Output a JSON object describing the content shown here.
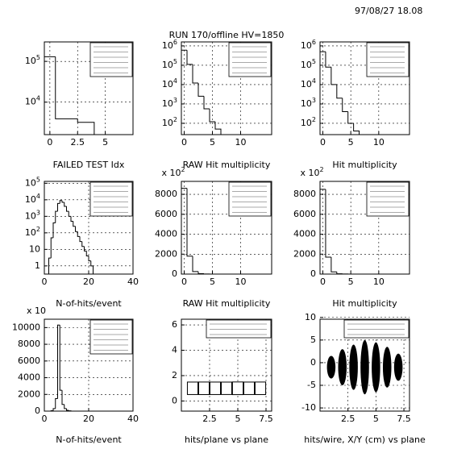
{
  "header": {
    "timestamp": "97/08/27  18.08",
    "title": "RUN 170/offline HV=1850"
  },
  "chart_data": [
    {
      "type": "histogram",
      "caption": "FAILED TEST Idx",
      "bins": [
        -0.5,
        0.5,
        2.5,
        4
      ],
      "counts": [
        130000,
        3900,
        3200
      ],
      "xlim": [
        -0.5,
        7.5
      ],
      "xticks": [
        0,
        2.5,
        5
      ],
      "ylim": [
        1600,
        300000
      ],
      "log_y": true,
      "yticks": [
        {
          "value": 10000,
          "label": "10^4"
        },
        {
          "value": 100000,
          "label": "10^5"
        }
      ],
      "grid": true,
      "color": "#000000"
    },
    {
      "type": "histogram",
      "caption": "RAW Hit multiplicity",
      "bins": [
        -0.5,
        0.5,
        1.5,
        2.5,
        3.5,
        4.5,
        5.5,
        6.5
      ],
      "counts": [
        600000,
        110000,
        12000,
        2500,
        560,
        120,
        50
      ],
      "xlim": [
        -0.5,
        15.5
      ],
      "xticks": [
        0,
        5,
        10
      ],
      "ylim": [
        26,
        1600000
      ],
      "log_y": true,
      "yticks": [
        {
          "value": 100,
          "label": "10^2"
        },
        {
          "value": 1000,
          "label": "10^3"
        },
        {
          "value": 10000,
          "label": "10^4"
        },
        {
          "value": 100000,
          "label": "10^5"
        },
        {
          "value": 1000000,
          "label": "10^6"
        }
      ],
      "grid": true,
      "color": "#000000"
    },
    {
      "type": "histogram",
      "caption": "Hit multiplicity",
      "bins": [
        -0.5,
        0.5,
        1.5,
        2.5,
        3.5,
        4.5,
        5.5,
        6.5
      ],
      "counts": [
        500000,
        80000,
        10000,
        2000,
        400,
        100,
        40
      ],
      "xlim": [
        -0.5,
        15.5
      ],
      "xticks": [
        0,
        5,
        10
      ],
      "ylim": [
        26,
        1600000
      ],
      "log_y": true,
      "yticks": [
        {
          "value": 100,
          "label": "10^2"
        },
        {
          "value": 1000,
          "label": "10^3"
        },
        {
          "value": 10000,
          "label": "10^4"
        },
        {
          "value": 100000,
          "label": "10^5"
        },
        {
          "value": 1000000,
          "label": "10^6"
        }
      ],
      "grid": true,
      "color": "#000000"
    },
    {
      "type": "histogram",
      "caption": "N-of-hits/event",
      "bins": [
        2,
        3,
        4,
        5,
        6,
        7,
        8,
        9,
        10,
        11,
        12,
        13,
        14,
        15,
        16,
        17,
        18,
        19,
        20,
        21,
        22
      ],
      "counts": [
        3,
        50,
        400,
        2000,
        6000,
        9000,
        7000,
        4000,
        2000,
        1000,
        500,
        250,
        120,
        60,
        30,
        15,
        8,
        4,
        2,
        1
      ],
      "xlim": [
        0,
        40
      ],
      "xticks": [
        0,
        20,
        40
      ],
      "ylim": [
        0.32,
        130000
      ],
      "log_y": true,
      "yticks": [
        1,
        10,
        {
          "value": 100,
          "label": "10^2"
        },
        {
          "value": 1000,
          "label": "10^3"
        },
        {
          "value": 10000,
          "label": "10^4"
        },
        {
          "value": 100000,
          "label": "10^5"
        }
      ],
      "grid": true,
      "color": "#000000"
    },
    {
      "type": "histogram",
      "caption": "RAW Hit multiplicity",
      "axis_note": "x 10^2",
      "bins": [
        -0.5,
        0.5,
        1.5,
        2.5,
        3.5,
        4.5
      ],
      "counts": [
        8600,
        1800,
        250,
        40,
        8
      ],
      "xlim": [
        -0.5,
        15.5
      ],
      "xticks": [
        0,
        5,
        10
      ],
      "ylim": [
        0,
        9300
      ],
      "log_y": false,
      "yticks": [
        0,
        2000,
        4000,
        6000,
        8000
      ],
      "grid": true,
      "color": "#000000"
    },
    {
      "type": "histogram",
      "caption": "Hit multiplicity",
      "axis_note": "x 10^2",
      "bins": [
        -0.5,
        0.5,
        1.5,
        2.5,
        3.5,
        4.5
      ],
      "counts": [
        8500,
        1700,
        220,
        35,
        6
      ],
      "xlim": [
        -0.5,
        15.5
      ],
      "xticks": [
        0,
        5,
        10
      ],
      "ylim": [
        0,
        9300
      ],
      "log_y": false,
      "yticks": [
        0,
        2000,
        4000,
        6000,
        8000
      ],
      "grid": true,
      "color": "#000000"
    },
    {
      "type": "histogram",
      "caption": "N-of-hits/event",
      "axis_note": "x 10",
      "bins": [
        3,
        4,
        5,
        6,
        7,
        8,
        9,
        10,
        11,
        12
      ],
      "counts": [
        50,
        300,
        1500,
        10300,
        2500,
        800,
        300,
        100,
        40
      ],
      "xlim": [
        0,
        40
      ],
      "xticks": [
        0,
        20,
        40
      ],
      "ylim": [
        0,
        11000
      ],
      "log_y": false,
      "yticks": [
        0,
        2000,
        4000,
        6000,
        8000,
        10000
      ],
      "grid": true,
      "color": "#000000"
    },
    {
      "type": "box2d",
      "caption": "hits/plane vs plane",
      "x": [
        1,
        2,
        3,
        4,
        5,
        6,
        7
      ],
      "y": [
        1,
        1,
        1,
        1,
        1,
        1,
        1
      ],
      "values": [
        9500,
        9600,
        9500,
        9400,
        9800,
        9500,
        9600
      ],
      "xlim": [
        0,
        8
      ],
      "xticks": [
        2.5,
        5,
        7.5
      ],
      "ylim": [
        -0.8,
        6.45
      ],
      "log_y": false,
      "yticks": [
        0,
        2,
        4,
        6
      ],
      "grid": true,
      "color": "#000000"
    },
    {
      "type": "violin",
      "caption": "hits/wire, X/Y (cm) vs plane",
      "x": [
        1,
        2,
        3,
        4,
        5,
        6,
        7
      ],
      "values": [
        -1,
        -1,
        -1,
        -1,
        -1,
        -1,
        -1
      ],
      "spread": [
        2.5,
        4,
        5,
        6,
        5.5,
        4.5,
        3
      ],
      "xlim": [
        0,
        8
      ],
      "xticks": [
        2.5,
        5,
        7.5
      ],
      "ylim": [
        -10.7,
        9.6
      ],
      "log_y": false,
      "yticks": [
        -10,
        -5,
        0,
        5,
        10
      ],
      "grid": true,
      "color": "#000000"
    }
  ]
}
